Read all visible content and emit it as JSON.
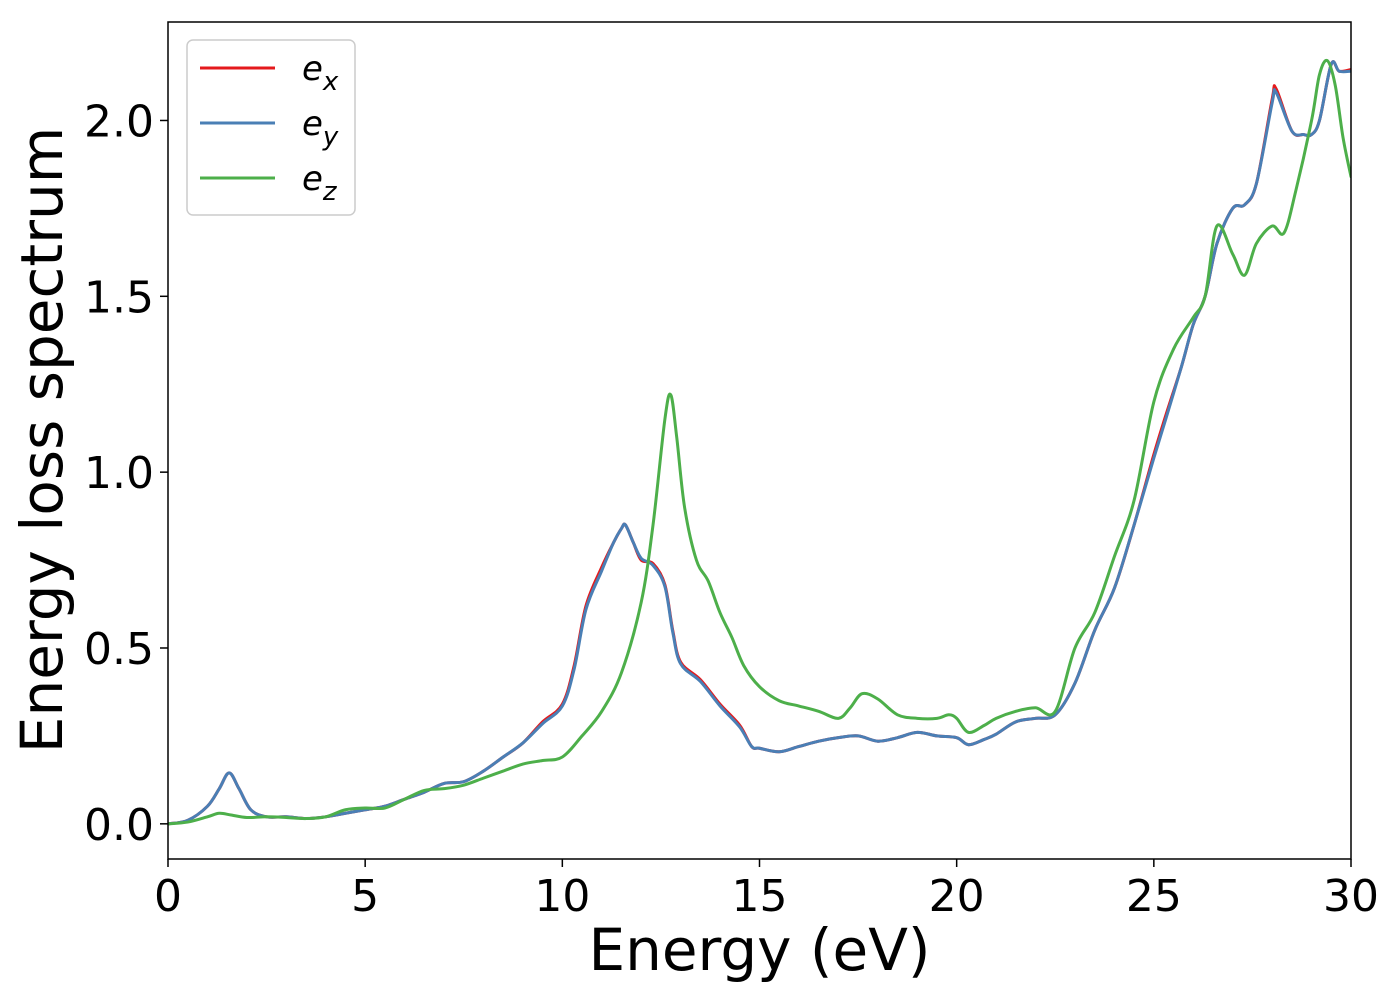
{
  "chart_data": {
    "type": "line",
    "xlabel": "Energy (eV)",
    "ylabel": "Energy loss spectrum",
    "xlim": [
      0,
      30
    ],
    "ylim": [
      -0.1,
      2.28
    ],
    "xticks": [
      0,
      5,
      10,
      15,
      20,
      25,
      30
    ],
    "xtick_labels": [
      "0",
      "5",
      "10",
      "15",
      "20",
      "25",
      "30"
    ],
    "yticks": [
      0.0,
      0.5,
      1.0,
      1.5,
      2.0
    ],
    "ytick_labels": [
      "0.0",
      "0.5",
      "1.0",
      "1.5",
      "2.0"
    ],
    "grid": false,
    "legend_position": "top-left",
    "series": [
      {
        "name": "e_x",
        "legend_base": "e",
        "legend_sub": "x",
        "color": "#e41a1c",
        "x": [
          0,
          0.5,
          1.0,
          1.3,
          1.55,
          1.8,
          2.1,
          2.5,
          3.0,
          3.5,
          4.0,
          4.5,
          5.0,
          5.5,
          6.0,
          6.5,
          7.0,
          7.5,
          8.0,
          8.5,
          9.0,
          9.5,
          10.0,
          10.3,
          10.6,
          11.0,
          11.3,
          11.5,
          11.6,
          11.8,
          12.0,
          12.3,
          12.6,
          12.8,
          13.0,
          13.5,
          14.0,
          14.5,
          14.8,
          15.0,
          15.5,
          16.0,
          16.5,
          17.0,
          17.5,
          18.0,
          18.5,
          19.0,
          19.5,
          20.0,
          20.3,
          20.7,
          21.0,
          21.5,
          22.0,
          22.5,
          23.0,
          23.5,
          24.0,
          24.5,
          25.0,
          25.3,
          25.7,
          26.0,
          26.3,
          26.6,
          27.0,
          27.3,
          27.6,
          28.0,
          28.1,
          28.5,
          28.8,
          29.0,
          29.2,
          29.5,
          29.7,
          30.0
        ],
        "y": [
          0,
          0.01,
          0.05,
          0.1,
          0.145,
          0.1,
          0.04,
          0.02,
          0.02,
          0.015,
          0.02,
          0.03,
          0.04,
          0.05,
          0.07,
          0.09,
          0.115,
          0.12,
          0.15,
          0.19,
          0.23,
          0.29,
          0.34,
          0.45,
          0.62,
          0.73,
          0.8,
          0.84,
          0.85,
          0.8,
          0.75,
          0.74,
          0.68,
          0.55,
          0.46,
          0.41,
          0.34,
          0.28,
          0.22,
          0.215,
          0.205,
          0.22,
          0.235,
          0.245,
          0.25,
          0.235,
          0.245,
          0.26,
          0.25,
          0.245,
          0.225,
          0.24,
          0.255,
          0.29,
          0.3,
          0.31,
          0.4,
          0.55,
          0.67,
          0.85,
          1.05,
          1.16,
          1.3,
          1.42,
          1.5,
          1.65,
          1.75,
          1.76,
          1.82,
          2.06,
          2.09,
          1.97,
          1.96,
          1.96,
          2.0,
          2.16,
          2.14,
          2.145
        ]
      },
      {
        "name": "e_y",
        "legend_base": "e",
        "legend_sub": "y",
        "color": "#4a7fb5",
        "x": [
          0,
          0.5,
          1.0,
          1.3,
          1.55,
          1.8,
          2.1,
          2.5,
          3.0,
          3.5,
          4.0,
          4.5,
          5.0,
          5.5,
          6.0,
          6.5,
          7.0,
          7.5,
          8.0,
          8.5,
          9.0,
          9.5,
          10.0,
          10.3,
          10.6,
          11.0,
          11.3,
          11.5,
          11.6,
          11.8,
          12.0,
          12.3,
          12.6,
          12.8,
          13.0,
          13.5,
          14.0,
          14.5,
          14.8,
          15.0,
          15.5,
          16.0,
          16.5,
          17.0,
          17.5,
          18.0,
          18.5,
          19.0,
          19.5,
          20.0,
          20.3,
          20.7,
          21.0,
          21.5,
          22.0,
          22.5,
          23.0,
          23.5,
          24.0,
          24.5,
          25.0,
          25.3,
          25.7,
          26.0,
          26.3,
          26.6,
          27.0,
          27.3,
          27.6,
          28.0,
          28.1,
          28.5,
          28.8,
          29.0,
          29.2,
          29.5,
          29.7,
          30.0
        ],
        "y": [
          0,
          0.01,
          0.05,
          0.1,
          0.145,
          0.1,
          0.04,
          0.02,
          0.02,
          0.015,
          0.02,
          0.03,
          0.04,
          0.05,
          0.07,
          0.09,
          0.115,
          0.12,
          0.15,
          0.19,
          0.23,
          0.285,
          0.335,
          0.44,
          0.61,
          0.72,
          0.8,
          0.84,
          0.85,
          0.8,
          0.755,
          0.735,
          0.675,
          0.545,
          0.455,
          0.405,
          0.335,
          0.275,
          0.22,
          0.215,
          0.205,
          0.22,
          0.235,
          0.245,
          0.25,
          0.235,
          0.245,
          0.26,
          0.25,
          0.245,
          0.225,
          0.24,
          0.255,
          0.29,
          0.3,
          0.31,
          0.4,
          0.55,
          0.67,
          0.85,
          1.04,
          1.15,
          1.3,
          1.42,
          1.5,
          1.65,
          1.75,
          1.76,
          1.82,
          2.05,
          2.08,
          1.97,
          1.96,
          1.96,
          2.0,
          2.16,
          2.14,
          2.14
        ]
      },
      {
        "name": "e_z",
        "legend_base": "e",
        "legend_sub": "z",
        "color": "#4daf4a",
        "x": [
          0,
          0.5,
          1.0,
          1.3,
          1.6,
          2.0,
          2.5,
          3.0,
          3.5,
          4.0,
          4.5,
          5.0,
          5.5,
          6.0,
          6.5,
          7.0,
          7.5,
          8.0,
          8.5,
          9.0,
          9.5,
          10.0,
          10.5,
          11.0,
          11.5,
          12.0,
          12.3,
          12.6,
          12.75,
          12.9,
          13.1,
          13.4,
          13.7,
          14.0,
          14.3,
          14.6,
          15.0,
          15.5,
          16.0,
          16.5,
          17.0,
          17.3,
          17.6,
          18.0,
          18.5,
          19.0,
          19.5,
          19.8,
          20.0,
          20.3,
          20.7,
          21.0,
          21.5,
          22.0,
          22.5,
          23.0,
          23.5,
          24.0,
          24.5,
          25.0,
          25.5,
          26.0,
          26.3,
          26.6,
          27.0,
          27.3,
          27.6,
          28.0,
          28.3,
          28.6,
          29.0,
          29.2,
          29.4,
          29.6,
          29.8,
          30.0
        ],
        "y": [
          0,
          0.005,
          0.02,
          0.03,
          0.025,
          0.018,
          0.02,
          0.018,
          0.015,
          0.02,
          0.04,
          0.045,
          0.045,
          0.07,
          0.095,
          0.1,
          0.11,
          0.13,
          0.15,
          0.17,
          0.18,
          0.19,
          0.25,
          0.32,
          0.43,
          0.63,
          0.85,
          1.15,
          1.22,
          1.1,
          0.9,
          0.75,
          0.69,
          0.6,
          0.53,
          0.45,
          0.39,
          0.35,
          0.335,
          0.32,
          0.3,
          0.33,
          0.37,
          0.355,
          0.31,
          0.3,
          0.3,
          0.31,
          0.3,
          0.26,
          0.28,
          0.3,
          0.32,
          0.33,
          0.32,
          0.5,
          0.6,
          0.76,
          0.92,
          1.2,
          1.35,
          1.44,
          1.5,
          1.7,
          1.62,
          1.56,
          1.65,
          1.7,
          1.68,
          1.8,
          2.0,
          2.13,
          2.17,
          2.1,
          1.95,
          1.84
        ]
      }
    ]
  }
}
